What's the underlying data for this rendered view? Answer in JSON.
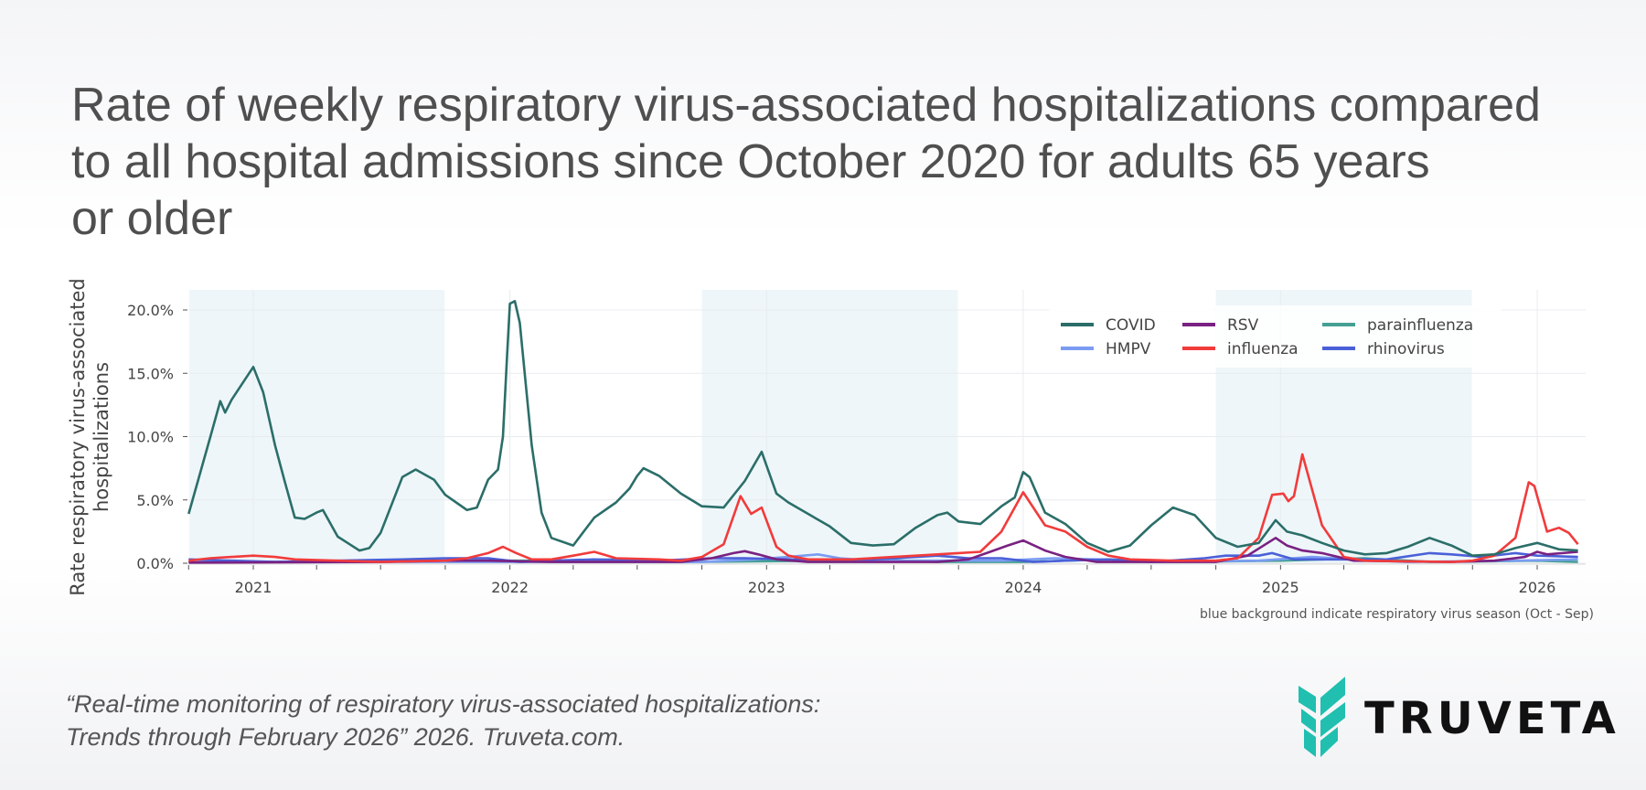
{
  "title_lines": [
    "Rate of weekly respiratory virus-associated hospitalizations compared",
    "to all hospital admissions since October 2020 for adults 65 years",
    "or older"
  ],
  "citation_lines": [
    "“Real-time monitoring of respiratory virus-associated hospitalizations:",
    "Trends through February 2026” 2026. Truveta.com."
  ],
  "logo": {
    "text": "TRUVETA",
    "color": "#20bfb0"
  },
  "chart_data": {
    "type": "line",
    "ylabel_lines": [
      "Rate respiratory virus-associated",
      "hospitalizations"
    ],
    "xlabel": "",
    "note": "blue background indicate respiratory virus season (Oct - Sep)",
    "xlim": [
      "2020-10-01",
      "2026-03-10"
    ],
    "ylim": [
      0,
      21.5
    ],
    "yticks": [
      0,
      5,
      10,
      15,
      20
    ],
    "ytick_labels": [
      "0.0%",
      "5.0%",
      "10.0%",
      "15.0%",
      "20.0%"
    ],
    "xticks": [
      "2021-01-01",
      "2022-01-01",
      "2023-01-01",
      "2024-01-01",
      "2025-01-01",
      "2026-01-01"
    ],
    "xtick_labels": [
      "2021",
      "2022",
      "2023",
      "2024",
      "2025",
      "2026"
    ],
    "grid": true,
    "legend_position": "top-right",
    "season_shading": {
      "color": "#eef6f9",
      "ranges": [
        [
          "2020-10-01",
          "2021-09-30"
        ],
        [
          "2022-10-01",
          "2023-09-30"
        ],
        [
          "2024-10-01",
          "2025-09-30"
        ]
      ]
    },
    "series": [
      {
        "name": "COVID",
        "color": "#2b6e69",
        "points": [
          [
            "2020-10-01",
            3.9
          ],
          [
            "2020-11-01",
            10.0
          ],
          [
            "2020-11-15",
            12.8
          ],
          [
            "2020-11-22",
            11.9
          ],
          [
            "2020-12-01",
            12.9
          ],
          [
            "2021-01-01",
            15.5
          ],
          [
            "2021-01-15",
            13.5
          ],
          [
            "2021-02-01",
            9.3
          ],
          [
            "2021-02-15",
            6.4
          ],
          [
            "2021-03-01",
            3.6
          ],
          [
            "2021-03-15",
            3.5
          ],
          [
            "2021-04-01",
            4.0
          ],
          [
            "2021-04-10",
            4.2
          ],
          [
            "2021-05-01",
            2.1
          ],
          [
            "2021-06-01",
            1.0
          ],
          [
            "2021-06-15",
            1.2
          ],
          [
            "2021-07-01",
            2.4
          ],
          [
            "2021-08-01",
            6.8
          ],
          [
            "2021-08-20",
            7.4
          ],
          [
            "2021-09-15",
            6.6
          ],
          [
            "2021-10-01",
            5.4
          ],
          [
            "2021-11-01",
            4.2
          ],
          [
            "2021-11-15",
            4.4
          ],
          [
            "2021-12-01",
            6.6
          ],
          [
            "2021-12-15",
            7.4
          ],
          [
            "2021-12-22",
            10.0
          ],
          [
            "2021-12-28",
            16.5
          ],
          [
            "2022-01-01",
            20.5
          ],
          [
            "2022-01-08",
            20.7
          ],
          [
            "2022-01-15",
            19.0
          ],
          [
            "2022-02-01",
            9.3
          ],
          [
            "2022-02-15",
            4.0
          ],
          [
            "2022-03-01",
            2.0
          ],
          [
            "2022-04-01",
            1.4
          ],
          [
            "2022-05-01",
            3.6
          ],
          [
            "2022-06-01",
            4.8
          ],
          [
            "2022-06-20",
            5.9
          ],
          [
            "2022-07-01",
            6.9
          ],
          [
            "2022-07-10",
            7.5
          ],
          [
            "2022-08-01",
            6.9
          ],
          [
            "2022-09-01",
            5.5
          ],
          [
            "2022-10-01",
            4.5
          ],
          [
            "2022-11-01",
            4.4
          ],
          [
            "2022-12-01",
            6.5
          ],
          [
            "2022-12-25",
            8.8
          ],
          [
            "2023-01-15",
            5.5
          ],
          [
            "2023-02-01",
            4.8
          ],
          [
            "2023-03-01",
            3.9
          ],
          [
            "2023-04-01",
            2.9
          ],
          [
            "2023-05-01",
            1.6
          ],
          [
            "2023-06-01",
            1.4
          ],
          [
            "2023-07-01",
            1.5
          ],
          [
            "2023-08-01",
            2.8
          ],
          [
            "2023-09-01",
            3.8
          ],
          [
            "2023-09-15",
            4.0
          ],
          [
            "2023-10-01",
            3.3
          ],
          [
            "2023-11-01",
            3.1
          ],
          [
            "2023-12-01",
            4.5
          ],
          [
            "2023-12-20",
            5.2
          ],
          [
            "2024-01-01",
            7.2
          ],
          [
            "2024-01-10",
            6.8
          ],
          [
            "2024-02-01",
            4.0
          ],
          [
            "2024-03-01",
            3.1
          ],
          [
            "2024-04-01",
            1.6
          ],
          [
            "2024-05-01",
            0.9
          ],
          [
            "2024-06-01",
            1.4
          ],
          [
            "2024-07-01",
            3.0
          ],
          [
            "2024-08-01",
            4.4
          ],
          [
            "2024-09-01",
            3.8
          ],
          [
            "2024-10-01",
            2.0
          ],
          [
            "2024-11-01",
            1.3
          ],
          [
            "2024-12-01",
            1.6
          ],
          [
            "2024-12-25",
            3.4
          ],
          [
            "2025-01-10",
            2.5
          ],
          [
            "2025-02-01",
            2.2
          ],
          [
            "2025-03-01",
            1.6
          ],
          [
            "2025-04-01",
            1.0
          ],
          [
            "2025-05-01",
            0.7
          ],
          [
            "2025-06-01",
            0.8
          ],
          [
            "2025-07-01",
            1.3
          ],
          [
            "2025-08-01",
            2.0
          ],
          [
            "2025-09-01",
            1.4
          ],
          [
            "2025-10-01",
            0.6
          ],
          [
            "2025-11-01",
            0.7
          ],
          [
            "2025-12-01",
            1.2
          ],
          [
            "2026-01-01",
            1.6
          ],
          [
            "2026-02-01",
            1.1
          ],
          [
            "2026-02-28",
            1.0
          ]
        ]
      },
      {
        "name": "HMPV",
        "color": "#7b9cf2",
        "points": [
          [
            "2020-10-01",
            0.1
          ],
          [
            "2021-06-01",
            0.1
          ],
          [
            "2022-01-01",
            0.1
          ],
          [
            "2022-10-01",
            0.1
          ],
          [
            "2022-12-15",
            0.3
          ],
          [
            "2023-02-01",
            0.5
          ],
          [
            "2023-03-15",
            0.7
          ],
          [
            "2023-04-15",
            0.4
          ],
          [
            "2023-06-01",
            0.2
          ],
          [
            "2023-12-01",
            0.2
          ],
          [
            "2024-02-15",
            0.4
          ],
          [
            "2024-04-15",
            0.3
          ],
          [
            "2024-07-01",
            0.1
          ],
          [
            "2024-12-01",
            0.2
          ],
          [
            "2025-02-15",
            0.5
          ],
          [
            "2025-04-15",
            0.3
          ],
          [
            "2025-07-01",
            0.1
          ],
          [
            "2025-12-01",
            0.2
          ],
          [
            "2026-02-28",
            0.3
          ]
        ]
      },
      {
        "name": "RSV",
        "color": "#7a2182",
        "points": [
          [
            "2020-10-01",
            0.05
          ],
          [
            "2021-07-01",
            0.1
          ],
          [
            "2021-10-01",
            0.2
          ],
          [
            "2021-12-01",
            0.2
          ],
          [
            "2022-03-01",
            0.1
          ],
          [
            "2022-09-01",
            0.1
          ],
          [
            "2022-10-15",
            0.4
          ],
          [
            "2022-11-15",
            0.8
          ],
          [
            "2022-12-01",
            0.95
          ],
          [
            "2022-12-20",
            0.7
          ],
          [
            "2023-01-15",
            0.3
          ],
          [
            "2023-03-01",
            0.1
          ],
          [
            "2023-09-01",
            0.1
          ],
          [
            "2023-10-15",
            0.3
          ],
          [
            "2023-11-15",
            0.9
          ],
          [
            "2023-12-10",
            1.4
          ],
          [
            "2024-01-01",
            1.8
          ],
          [
            "2024-02-01",
            1.0
          ],
          [
            "2024-03-01",
            0.5
          ],
          [
            "2024-04-15",
            0.1
          ],
          [
            "2024-10-01",
            0.1
          ],
          [
            "2024-11-15",
            0.6
          ],
          [
            "2024-12-25",
            2.0
          ],
          [
            "2025-01-10",
            1.4
          ],
          [
            "2025-02-01",
            1.0
          ],
          [
            "2025-03-01",
            0.8
          ],
          [
            "2025-04-15",
            0.2
          ],
          [
            "2025-09-01",
            0.1
          ],
          [
            "2025-11-01",
            0.2
          ],
          [
            "2025-12-15",
            0.5
          ],
          [
            "2026-01-01",
            0.9
          ],
          [
            "2026-01-15",
            0.7
          ],
          [
            "2026-02-28",
            0.9
          ]
        ]
      },
      {
        "name": "influenza",
        "color": "#f23b3b",
        "points": [
          [
            "2020-10-01",
            0.2
          ],
          [
            "2020-11-01",
            0.4
          ],
          [
            "2020-12-01",
            0.5
          ],
          [
            "2021-01-01",
            0.6
          ],
          [
            "2021-02-01",
            0.5
          ],
          [
            "2021-03-01",
            0.3
          ],
          [
            "2021-05-01",
            0.2
          ],
          [
            "2021-07-01",
            0.1
          ],
          [
            "2021-10-01",
            0.2
          ],
          [
            "2021-11-01",
            0.4
          ],
          [
            "2021-12-01",
            0.8
          ],
          [
            "2021-12-22",
            1.3
          ],
          [
            "2022-01-10",
            0.8
          ],
          [
            "2022-02-01",
            0.3
          ],
          [
            "2022-03-01",
            0.3
          ],
          [
            "2022-04-01",
            0.6
          ],
          [
            "2022-05-01",
            0.9
          ],
          [
            "2022-06-01",
            0.4
          ],
          [
            "2022-08-01",
            0.3
          ],
          [
            "2022-09-01",
            0.2
          ],
          [
            "2022-10-01",
            0.5
          ],
          [
            "2022-11-01",
            1.5
          ],
          [
            "2022-11-25",
            5.3
          ],
          [
            "2022-12-10",
            3.9
          ],
          [
            "2022-12-25",
            4.4
          ],
          [
            "2023-01-15",
            1.3
          ],
          [
            "2023-02-01",
            0.6
          ],
          [
            "2023-03-01",
            0.3
          ],
          [
            "2023-05-01",
            0.3
          ],
          [
            "2023-07-01",
            0.5
          ],
          [
            "2023-09-01",
            0.7
          ],
          [
            "2023-10-01",
            0.8
          ],
          [
            "2023-11-01",
            0.9
          ],
          [
            "2023-12-01",
            2.5
          ],
          [
            "2024-01-01",
            5.6
          ],
          [
            "2024-02-01",
            3.0
          ],
          [
            "2024-03-01",
            2.5
          ],
          [
            "2024-04-01",
            1.3
          ],
          [
            "2024-05-01",
            0.6
          ],
          [
            "2024-06-01",
            0.3
          ],
          [
            "2024-08-01",
            0.2
          ],
          [
            "2024-10-01",
            0.2
          ],
          [
            "2024-11-01",
            0.4
          ],
          [
            "2024-12-01",
            2.0
          ],
          [
            "2024-12-20",
            5.4
          ],
          [
            "2025-01-05",
            5.5
          ],
          [
            "2025-01-12",
            4.9
          ],
          [
            "2025-01-20",
            5.3
          ],
          [
            "2025-02-01",
            8.6
          ],
          [
            "2025-03-01",
            3.0
          ],
          [
            "2025-04-01",
            0.5
          ],
          [
            "2025-05-01",
            0.2
          ],
          [
            "2025-09-01",
            0.1
          ],
          [
            "2025-10-01",
            0.2
          ],
          [
            "2025-11-01",
            0.6
          ],
          [
            "2025-12-01",
            2.0
          ],
          [
            "2025-12-20",
            6.4
          ],
          [
            "2025-12-28",
            6.1
          ],
          [
            "2026-01-15",
            2.5
          ],
          [
            "2026-02-01",
            2.8
          ],
          [
            "2026-02-15",
            2.4
          ],
          [
            "2026-02-28",
            1.5
          ]
        ]
      },
      {
        "name": "parainfluenza",
        "color": "#45a093",
        "points": [
          [
            "2020-10-01",
            0.1
          ],
          [
            "2021-06-01",
            0.1
          ],
          [
            "2021-09-01",
            0.2
          ],
          [
            "2021-12-01",
            0.2
          ],
          [
            "2022-04-01",
            0.2
          ],
          [
            "2022-06-01",
            0.3
          ],
          [
            "2022-09-01",
            0.1
          ],
          [
            "2023-04-01",
            0.2
          ],
          [
            "2023-06-01",
            0.3
          ],
          [
            "2023-09-01",
            0.1
          ],
          [
            "2024-01-01",
            0.1
          ],
          [
            "2024-05-01",
            0.3
          ],
          [
            "2024-08-01",
            0.1
          ],
          [
            "2025-01-01",
            0.2
          ],
          [
            "2025-05-01",
            0.4
          ],
          [
            "2025-08-01",
            0.1
          ],
          [
            "2026-01-01",
            0.2
          ],
          [
            "2026-02-28",
            0.1
          ]
        ]
      },
      {
        "name": "rhinovirus",
        "color": "#4a60d8",
        "points": [
          [
            "2020-10-01",
            0.3
          ],
          [
            "2020-12-01",
            0.2
          ],
          [
            "2021-02-01",
            0.1
          ],
          [
            "2021-05-01",
            0.2
          ],
          [
            "2021-08-01",
            0.3
          ],
          [
            "2021-10-01",
            0.4
          ],
          [
            "2021-12-01",
            0.4
          ],
          [
            "2022-01-15",
            0.1
          ],
          [
            "2022-03-01",
            0.2
          ],
          [
            "2022-05-01",
            0.3
          ],
          [
            "2022-08-01",
            0.2
          ],
          [
            "2022-10-15",
            0.4
          ],
          [
            "2022-12-01",
            0.4
          ],
          [
            "2023-02-01",
            0.3
          ],
          [
            "2023-04-01",
            0.3
          ],
          [
            "2023-06-01",
            0.3
          ],
          [
            "2023-09-01",
            0.6
          ],
          [
            "2023-10-15",
            0.4
          ],
          [
            "2023-12-01",
            0.4
          ],
          [
            "2024-01-15",
            0.1
          ],
          [
            "2024-03-01",
            0.2
          ],
          [
            "2024-05-01",
            0.3
          ],
          [
            "2024-07-01",
            0.1
          ],
          [
            "2024-09-15",
            0.4
          ],
          [
            "2024-10-15",
            0.6
          ],
          [
            "2024-12-01",
            0.6
          ],
          [
            "2024-12-20",
            0.8
          ],
          [
            "2025-01-20",
            0.3
          ],
          [
            "2025-04-01",
            0.3
          ],
          [
            "2025-06-01",
            0.3
          ],
          [
            "2025-08-01",
            0.8
          ],
          [
            "2025-09-01",
            0.7
          ],
          [
            "2025-10-15",
            0.5
          ],
          [
            "2025-12-01",
            0.8
          ],
          [
            "2026-01-01",
            0.6
          ],
          [
            "2026-02-28",
            0.5
          ]
        ]
      }
    ]
  }
}
